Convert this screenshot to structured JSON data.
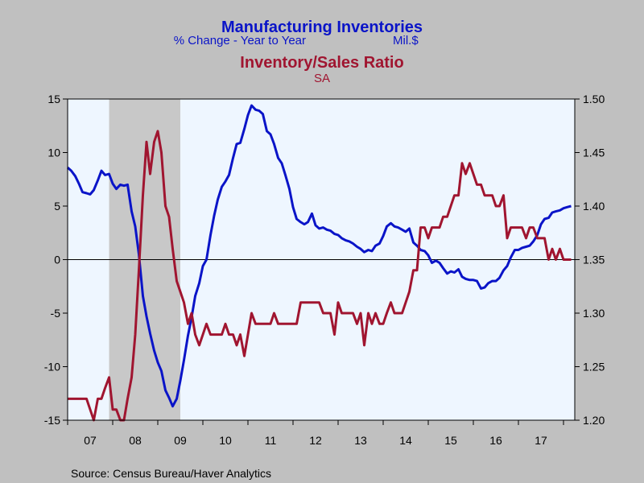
{
  "chart_data": {
    "type": "line",
    "title": "Manufacturing Inventories",
    "subtitle_left": "% Change - Year to Year",
    "subtitle_right": "Mil.$",
    "title2": "Inventory/Sales Ratio",
    "subtitle2": "SA",
    "source": "Source:  Census Bureau/Haver Analytics",
    "x_range": [
      2007.0,
      2018.25
    ],
    "x_tick_labels": [
      "07",
      "08",
      "09",
      "10",
      "11",
      "12",
      "13",
      "14",
      "15",
      "16",
      "17"
    ],
    "y_left": {
      "range": [
        -15,
        15
      ],
      "ticks": [
        15,
        10,
        5,
        0,
        -5,
        -10,
        -15
      ]
    },
    "y_right": {
      "range": [
        1.2,
        1.5
      ],
      "ticks": [
        "1.50",
        "1.45",
        "1.40",
        "1.35",
        "1.30",
        "1.25",
        "1.20"
      ]
    },
    "recession": [
      2007.92,
      2009.5
    ],
    "zero_line": 0,
    "colors": {
      "blue": "#0A14C8",
      "red": "#A01530",
      "plot_bg": "#EEF6FF",
      "recession": "#C8C8C8"
    },
    "series": [
      {
        "axis": "left",
        "color": "#0A14C8",
        "points": [
          [
            2007.0,
            8.6
          ],
          [
            2007.08,
            8.3
          ],
          [
            2007.17,
            7.8
          ],
          [
            2007.25,
            7.1
          ],
          [
            2007.33,
            6.3
          ],
          [
            2007.42,
            6.2
          ],
          [
            2007.5,
            6.1
          ],
          [
            2007.58,
            6.5
          ],
          [
            2007.67,
            7.4
          ],
          [
            2007.75,
            8.3
          ],
          [
            2007.83,
            7.9
          ],
          [
            2007.92,
            8.0
          ],
          [
            2008.0,
            7.1
          ],
          [
            2008.08,
            6.6
          ],
          [
            2008.17,
            7.0
          ],
          [
            2008.25,
            6.9
          ],
          [
            2008.33,
            7.0
          ],
          [
            2008.42,
            4.5
          ],
          [
            2008.5,
            3.1
          ],
          [
            2008.58,
            0.5
          ],
          [
            2008.67,
            -3.4
          ],
          [
            2008.75,
            -5.3
          ],
          [
            2008.83,
            -6.9
          ],
          [
            2008.92,
            -8.5
          ],
          [
            2009.0,
            -9.6
          ],
          [
            2009.08,
            -10.4
          ],
          [
            2009.17,
            -12.2
          ],
          [
            2009.25,
            -12.9
          ],
          [
            2009.33,
            -13.7
          ],
          [
            2009.42,
            -13.0
          ],
          [
            2009.5,
            -11.3
          ],
          [
            2009.58,
            -9.4
          ],
          [
            2009.67,
            -7.1
          ],
          [
            2009.75,
            -5.4
          ],
          [
            2009.83,
            -3.4
          ],
          [
            2009.92,
            -2.2
          ],
          [
            2010.0,
            -0.6
          ],
          [
            2010.08,
            0.0
          ],
          [
            2010.17,
            2.3
          ],
          [
            2010.25,
            4.1
          ],
          [
            2010.33,
            5.6
          ],
          [
            2010.42,
            6.8
          ],
          [
            2010.5,
            7.3
          ],
          [
            2010.58,
            7.9
          ],
          [
            2010.67,
            9.5
          ],
          [
            2010.75,
            10.8
          ],
          [
            2010.83,
            10.9
          ],
          [
            2010.92,
            12.2
          ],
          [
            2011.0,
            13.5
          ],
          [
            2011.08,
            14.4
          ],
          [
            2011.17,
            14.0
          ],
          [
            2011.25,
            13.9
          ],
          [
            2011.33,
            13.6
          ],
          [
            2011.42,
            12.0
          ],
          [
            2011.5,
            11.7
          ],
          [
            2011.58,
            10.8
          ],
          [
            2011.67,
            9.5
          ],
          [
            2011.75,
            9.0
          ],
          [
            2011.83,
            7.9
          ],
          [
            2011.92,
            6.6
          ],
          [
            2012.0,
            4.9
          ],
          [
            2012.08,
            3.8
          ],
          [
            2012.17,
            3.5
          ],
          [
            2012.25,
            3.3
          ],
          [
            2012.33,
            3.5
          ],
          [
            2012.42,
            4.3
          ],
          [
            2012.5,
            3.2
          ],
          [
            2012.58,
            2.9
          ],
          [
            2012.67,
            3.0
          ],
          [
            2012.75,
            2.8
          ],
          [
            2012.83,
            2.7
          ],
          [
            2012.92,
            2.4
          ],
          [
            2013.0,
            2.3
          ],
          [
            2013.08,
            2.0
          ],
          [
            2013.17,
            1.8
          ],
          [
            2013.25,
            1.7
          ],
          [
            2013.33,
            1.5
          ],
          [
            2013.42,
            1.2
          ],
          [
            2013.5,
            1.0
          ],
          [
            2013.58,
            0.7
          ],
          [
            2013.67,
            0.9
          ],
          [
            2013.75,
            0.8
          ],
          [
            2013.83,
            1.3
          ],
          [
            2013.92,
            1.5
          ],
          [
            2014.0,
            2.2
          ],
          [
            2014.08,
            3.1
          ],
          [
            2014.17,
            3.4
          ],
          [
            2014.25,
            3.1
          ],
          [
            2014.33,
            3.0
          ],
          [
            2014.42,
            2.8
          ],
          [
            2014.5,
            2.6
          ],
          [
            2014.58,
            2.9
          ],
          [
            2014.67,
            1.6
          ],
          [
            2014.75,
            1.3
          ],
          [
            2014.83,
            0.9
          ],
          [
            2014.92,
            0.8
          ],
          [
            2015.0,
            0.4
          ],
          [
            2015.08,
            -0.3
          ],
          [
            2015.17,
            -0.1
          ],
          [
            2015.25,
            -0.3
          ],
          [
            2015.33,
            -0.8
          ],
          [
            2015.42,
            -1.3
          ],
          [
            2015.5,
            -1.1
          ],
          [
            2015.58,
            -1.2
          ],
          [
            2015.67,
            -0.9
          ],
          [
            2015.75,
            -1.6
          ],
          [
            2015.83,
            -1.8
          ],
          [
            2015.92,
            -1.9
          ],
          [
            2016.0,
            -1.9
          ],
          [
            2016.08,
            -2.0
          ],
          [
            2016.17,
            -2.7
          ],
          [
            2016.25,
            -2.6
          ],
          [
            2016.33,
            -2.2
          ],
          [
            2016.42,
            -2.0
          ],
          [
            2016.5,
            -2.0
          ],
          [
            2016.58,
            -1.7
          ],
          [
            2016.67,
            -1.0
          ],
          [
            2016.75,
            -0.6
          ],
          [
            2016.83,
            0.2
          ],
          [
            2016.92,
            0.9
          ],
          [
            2017.0,
            0.9
          ],
          [
            2017.08,
            1.1
          ],
          [
            2017.17,
            1.2
          ],
          [
            2017.25,
            1.3
          ],
          [
            2017.33,
            1.7
          ],
          [
            2017.42,
            2.3
          ],
          [
            2017.5,
            3.3
          ],
          [
            2017.58,
            3.8
          ],
          [
            2017.67,
            3.9
          ],
          [
            2017.75,
            4.4
          ],
          [
            2017.83,
            4.5
          ],
          [
            2017.92,
            4.6
          ],
          [
            2018.0,
            4.8
          ],
          [
            2018.08,
            4.9
          ],
          [
            2018.17,
            5.0
          ]
        ]
      },
      {
        "axis": "right",
        "color": "#A01530",
        "points": [
          [
            2007.0,
            1.22
          ],
          [
            2007.08,
            1.22
          ],
          [
            2007.17,
            1.22
          ],
          [
            2007.25,
            1.22
          ],
          [
            2007.33,
            1.22
          ],
          [
            2007.42,
            1.22
          ],
          [
            2007.5,
            1.21
          ],
          [
            2007.58,
            1.2
          ],
          [
            2007.67,
            1.22
          ],
          [
            2007.75,
            1.22
          ],
          [
            2007.83,
            1.23
          ],
          [
            2007.92,
            1.24
          ],
          [
            2008.0,
            1.21
          ],
          [
            2008.08,
            1.21
          ],
          [
            2008.17,
            1.2
          ],
          [
            2008.25,
            1.2
          ],
          [
            2008.33,
            1.22
          ],
          [
            2008.42,
            1.24
          ],
          [
            2008.5,
            1.28
          ],
          [
            2008.58,
            1.34
          ],
          [
            2008.67,
            1.41
          ],
          [
            2008.75,
            1.46
          ],
          [
            2008.83,
            1.43
          ],
          [
            2008.92,
            1.46
          ],
          [
            2009.0,
            1.47
          ],
          [
            2009.08,
            1.45
          ],
          [
            2009.17,
            1.4
          ],
          [
            2009.25,
            1.39
          ],
          [
            2009.33,
            1.36
          ],
          [
            2009.42,
            1.33
          ],
          [
            2009.5,
            1.32
          ],
          [
            2009.58,
            1.31
          ],
          [
            2009.67,
            1.29
          ],
          [
            2009.75,
            1.3
          ],
          [
            2009.83,
            1.28
          ],
          [
            2009.92,
            1.27
          ],
          [
            2010.0,
            1.28
          ],
          [
            2010.08,
            1.29
          ],
          [
            2010.17,
            1.28
          ],
          [
            2010.25,
            1.28
          ],
          [
            2010.33,
            1.28
          ],
          [
            2010.42,
            1.28
          ],
          [
            2010.5,
            1.29
          ],
          [
            2010.58,
            1.28
          ],
          [
            2010.67,
            1.28
          ],
          [
            2010.75,
            1.27
          ],
          [
            2010.83,
            1.28
          ],
          [
            2010.92,
            1.26
          ],
          [
            2011.0,
            1.28
          ],
          [
            2011.08,
            1.3
          ],
          [
            2011.17,
            1.29
          ],
          [
            2011.25,
            1.29
          ],
          [
            2011.33,
            1.29
          ],
          [
            2011.42,
            1.29
          ],
          [
            2011.5,
            1.29
          ],
          [
            2011.58,
            1.3
          ],
          [
            2011.67,
            1.29
          ],
          [
            2011.75,
            1.29
          ],
          [
            2011.83,
            1.29
          ],
          [
            2011.92,
            1.29
          ],
          [
            2012.0,
            1.29
          ],
          [
            2012.08,
            1.29
          ],
          [
            2012.17,
            1.31
          ],
          [
            2012.25,
            1.31
          ],
          [
            2012.33,
            1.31
          ],
          [
            2012.42,
            1.31
          ],
          [
            2012.5,
            1.31
          ],
          [
            2012.58,
            1.31
          ],
          [
            2012.67,
            1.3
          ],
          [
            2012.75,
            1.3
          ],
          [
            2012.83,
            1.3
          ],
          [
            2012.92,
            1.28
          ],
          [
            2013.0,
            1.31
          ],
          [
            2013.08,
            1.3
          ],
          [
            2013.17,
            1.3
          ],
          [
            2013.25,
            1.3
          ],
          [
            2013.33,
            1.3
          ],
          [
            2013.42,
            1.29
          ],
          [
            2013.5,
            1.3
          ],
          [
            2013.58,
            1.27
          ],
          [
            2013.67,
            1.3
          ],
          [
            2013.75,
            1.29
          ],
          [
            2013.83,
            1.3
          ],
          [
            2013.92,
            1.29
          ],
          [
            2014.0,
            1.29
          ],
          [
            2014.08,
            1.3
          ],
          [
            2014.17,
            1.31
          ],
          [
            2014.25,
            1.3
          ],
          [
            2014.33,
            1.3
          ],
          [
            2014.42,
            1.3
          ],
          [
            2014.5,
            1.31
          ],
          [
            2014.58,
            1.32
          ],
          [
            2014.67,
            1.34
          ],
          [
            2014.75,
            1.34
          ],
          [
            2014.83,
            1.38
          ],
          [
            2014.92,
            1.38
          ],
          [
            2015.0,
            1.37
          ],
          [
            2015.08,
            1.38
          ],
          [
            2015.17,
            1.38
          ],
          [
            2015.25,
            1.38
          ],
          [
            2015.33,
            1.39
          ],
          [
            2015.42,
            1.39
          ],
          [
            2015.5,
            1.4
          ],
          [
            2015.58,
            1.41
          ],
          [
            2015.67,
            1.41
          ],
          [
            2015.75,
            1.44
          ],
          [
            2015.83,
            1.43
          ],
          [
            2015.92,
            1.44
          ],
          [
            2016.0,
            1.43
          ],
          [
            2016.08,
            1.42
          ],
          [
            2016.17,
            1.42
          ],
          [
            2016.25,
            1.41
          ],
          [
            2016.33,
            1.41
          ],
          [
            2016.42,
            1.41
          ],
          [
            2016.5,
            1.4
          ],
          [
            2016.58,
            1.4
          ],
          [
            2016.67,
            1.41
          ],
          [
            2016.75,
            1.37
          ],
          [
            2016.83,
            1.38
          ],
          [
            2016.92,
            1.38
          ],
          [
            2017.0,
            1.38
          ],
          [
            2017.08,
            1.38
          ],
          [
            2017.17,
            1.37
          ],
          [
            2017.25,
            1.38
          ],
          [
            2017.33,
            1.38
          ],
          [
            2017.42,
            1.37
          ],
          [
            2017.5,
            1.37
          ],
          [
            2017.58,
            1.37
          ],
          [
            2017.67,
            1.35
          ],
          [
            2017.75,
            1.36
          ],
          [
            2017.83,
            1.35
          ],
          [
            2017.92,
            1.36
          ],
          [
            2018.0,
            1.35
          ],
          [
            2018.08,
            1.35
          ],
          [
            2018.17,
            1.35
          ]
        ]
      }
    ]
  }
}
